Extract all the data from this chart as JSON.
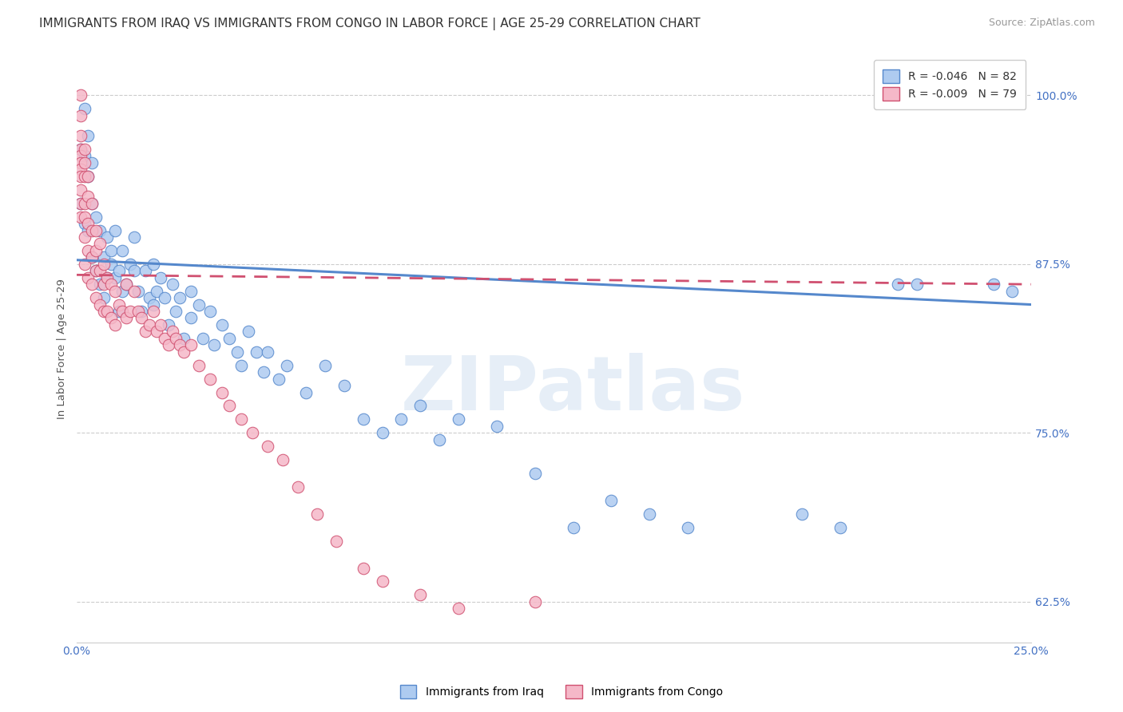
{
  "title": "IMMIGRANTS FROM IRAQ VS IMMIGRANTS FROM CONGO IN LABOR FORCE | AGE 25-29 CORRELATION CHART",
  "source": "Source: ZipAtlas.com",
  "ylabel": "In Labor Force | Age 25-29",
  "xlim": [
    0.0,
    0.25
  ],
  "ylim": [
    0.595,
    1.03
  ],
  "xticks": [
    0.0,
    0.05,
    0.1,
    0.15,
    0.2,
    0.25
  ],
  "yticks": [
    0.625,
    0.75,
    0.875,
    1.0
  ],
  "yticklabels": [
    "62.5%",
    "75.0%",
    "87.5%",
    "100.0%"
  ],
  "iraq_R": -0.046,
  "iraq_N": 82,
  "congo_R": -0.009,
  "congo_N": 79,
  "iraq_color": "#aecbf0",
  "iraq_edge_color": "#5588cc",
  "congo_color": "#f5b8c8",
  "congo_edge_color": "#d05070",
  "iraq_x": [
    0.001,
    0.001,
    0.002,
    0.002,
    0.002,
    0.003,
    0.003,
    0.003,
    0.004,
    0.004,
    0.004,
    0.005,
    0.005,
    0.006,
    0.006,
    0.007,
    0.007,
    0.008,
    0.008,
    0.009,
    0.009,
    0.01,
    0.01,
    0.011,
    0.011,
    0.012,
    0.012,
    0.013,
    0.014,
    0.015,
    0.015,
    0.016,
    0.017,
    0.018,
    0.019,
    0.02,
    0.02,
    0.021,
    0.022,
    0.023,
    0.024,
    0.025,
    0.026,
    0.027,
    0.028,
    0.03,
    0.03,
    0.032,
    0.033,
    0.035,
    0.036,
    0.038,
    0.04,
    0.042,
    0.043,
    0.045,
    0.047,
    0.049,
    0.05,
    0.053,
    0.055,
    0.06,
    0.065,
    0.07,
    0.075,
    0.08,
    0.085,
    0.09,
    0.095,
    0.1,
    0.11,
    0.12,
    0.13,
    0.14,
    0.15,
    0.16,
    0.19,
    0.2,
    0.215,
    0.22,
    0.24,
    0.245
  ],
  "iraq_y": [
    0.96,
    0.92,
    0.99,
    0.955,
    0.905,
    0.97,
    0.94,
    0.9,
    0.95,
    0.92,
    0.88,
    0.91,
    0.87,
    0.9,
    0.86,
    0.88,
    0.85,
    0.895,
    0.865,
    0.885,
    0.875,
    0.9,
    0.865,
    0.87,
    0.84,
    0.885,
    0.855,
    0.86,
    0.875,
    0.895,
    0.87,
    0.855,
    0.84,
    0.87,
    0.85,
    0.875,
    0.845,
    0.855,
    0.865,
    0.85,
    0.83,
    0.86,
    0.84,
    0.85,
    0.82,
    0.855,
    0.835,
    0.845,
    0.82,
    0.84,
    0.815,
    0.83,
    0.82,
    0.81,
    0.8,
    0.825,
    0.81,
    0.795,
    0.81,
    0.79,
    0.8,
    0.78,
    0.8,
    0.785,
    0.76,
    0.75,
    0.76,
    0.77,
    0.745,
    0.76,
    0.755,
    0.72,
    0.68,
    0.7,
    0.69,
    0.68,
    0.69,
    0.68,
    0.86,
    0.86,
    0.86,
    0.855
  ],
  "congo_x": [
    0.001,
    0.001,
    0.001,
    0.001,
    0.001,
    0.001,
    0.001,
    0.001,
    0.001,
    0.001,
    0.001,
    0.002,
    0.002,
    0.002,
    0.002,
    0.002,
    0.002,
    0.002,
    0.003,
    0.003,
    0.003,
    0.003,
    0.003,
    0.004,
    0.004,
    0.004,
    0.004,
    0.005,
    0.005,
    0.005,
    0.005,
    0.006,
    0.006,
    0.006,
    0.007,
    0.007,
    0.007,
    0.008,
    0.008,
    0.009,
    0.009,
    0.01,
    0.01,
    0.011,
    0.012,
    0.013,
    0.013,
    0.014,
    0.015,
    0.016,
    0.017,
    0.018,
    0.019,
    0.02,
    0.021,
    0.022,
    0.023,
    0.024,
    0.025,
    0.026,
    0.027,
    0.028,
    0.03,
    0.032,
    0.035,
    0.038,
    0.04,
    0.043,
    0.046,
    0.05,
    0.054,
    0.058,
    0.063,
    0.068,
    0.075,
    0.08,
    0.09,
    0.1,
    0.12
  ],
  "congo_y": [
    1.0,
    0.985,
    0.97,
    0.96,
    0.955,
    0.95,
    0.945,
    0.94,
    0.93,
    0.92,
    0.91,
    0.96,
    0.95,
    0.94,
    0.92,
    0.91,
    0.895,
    0.875,
    0.94,
    0.925,
    0.905,
    0.885,
    0.865,
    0.92,
    0.9,
    0.88,
    0.86,
    0.9,
    0.885,
    0.87,
    0.85,
    0.89,
    0.87,
    0.845,
    0.875,
    0.86,
    0.84,
    0.865,
    0.84,
    0.86,
    0.835,
    0.855,
    0.83,
    0.845,
    0.84,
    0.86,
    0.835,
    0.84,
    0.855,
    0.84,
    0.835,
    0.825,
    0.83,
    0.84,
    0.825,
    0.83,
    0.82,
    0.815,
    0.825,
    0.82,
    0.815,
    0.81,
    0.815,
    0.8,
    0.79,
    0.78,
    0.77,
    0.76,
    0.75,
    0.74,
    0.73,
    0.71,
    0.69,
    0.67,
    0.65,
    0.64,
    0.63,
    0.62,
    0.625
  ],
  "watermark_text": "ZIPatlas",
  "title_fontsize": 11,
  "axis_fontsize": 9.5,
  "tick_fontsize": 10,
  "legend_fontsize": 10
}
